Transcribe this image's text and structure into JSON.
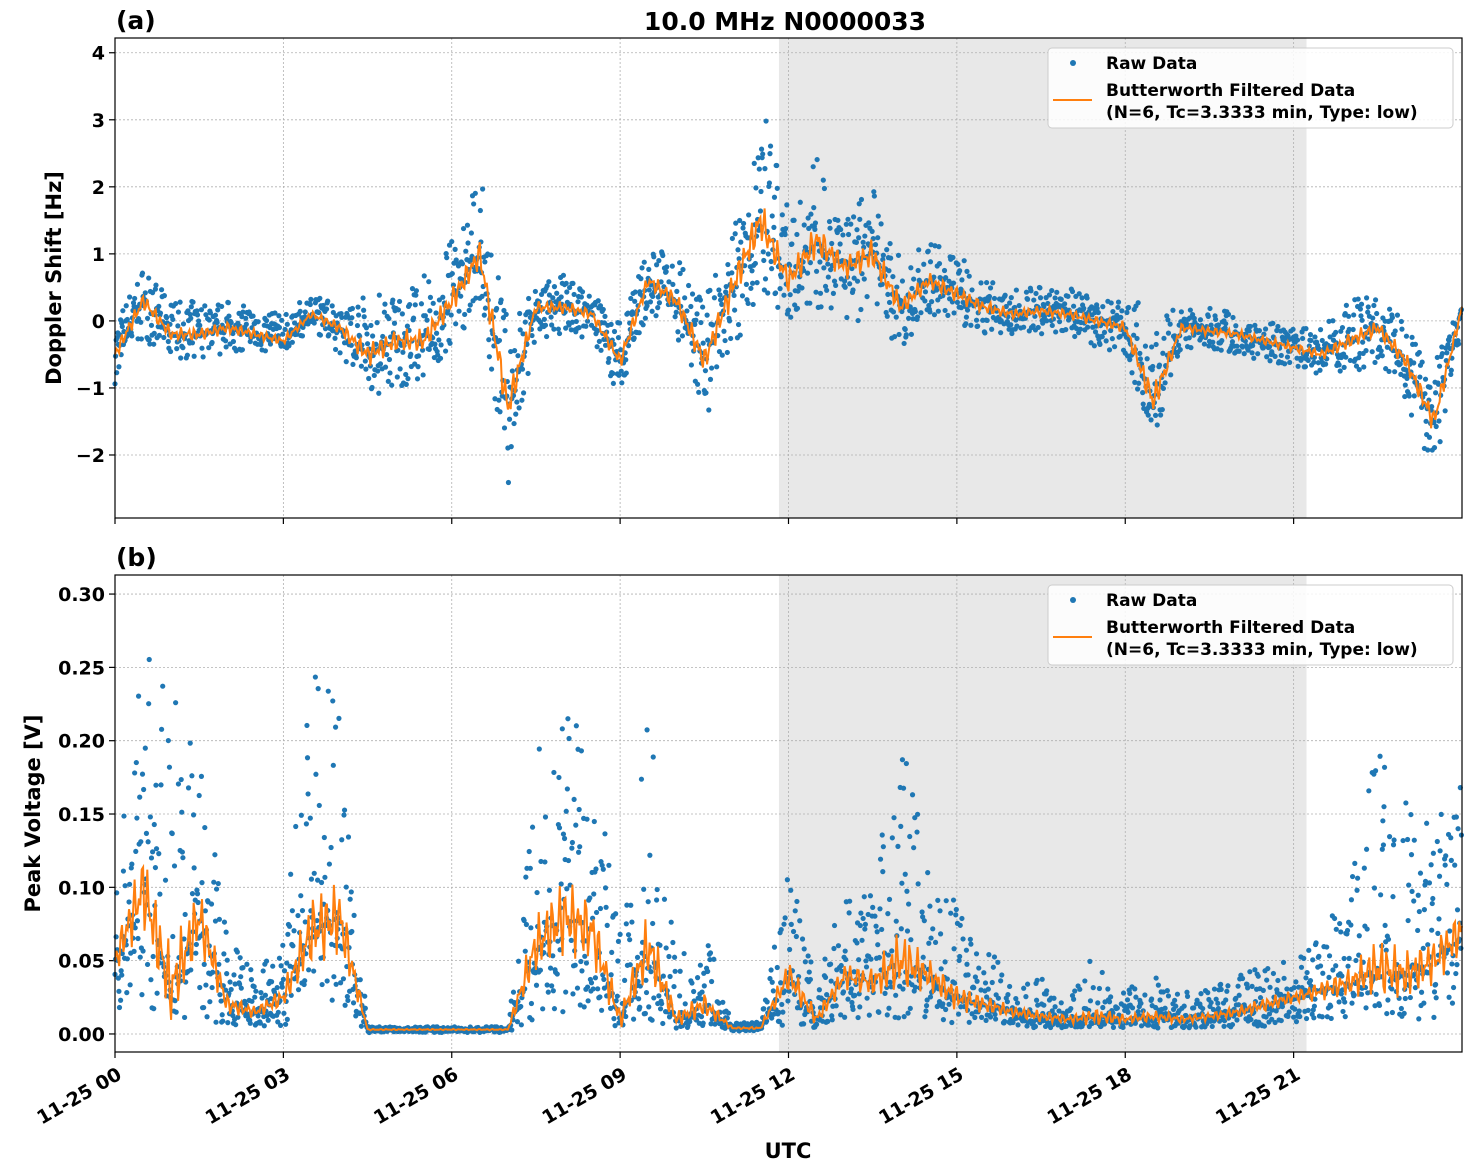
{
  "title": "10.0 MHz N0000033",
  "xlabel": "UTC",
  "colors": {
    "raw": "#1f77b4",
    "filtered": "#ff7f0e",
    "shade": "#e8e8e8"
  },
  "chart_data": [
    {
      "type": "scatter",
      "panel_label": "(a)",
      "ylabel": "Doppler Shift [Hz]",
      "xlim_hours": [
        0,
        24
      ],
      "ylim": [
        -2.94,
        4.22
      ],
      "yticks": [
        -2,
        -1,
        0,
        1,
        2,
        3,
        4
      ],
      "ytick_labels": [
        "−2",
        "−1",
        "0",
        "1",
        "2",
        "3",
        "4"
      ],
      "xtick_labels": [
        "11-25 00",
        "11-25 03",
        "11-25 06",
        "11-25 09",
        "11-25 12",
        "11-25 15",
        "11-25 18",
        "11-25 21"
      ],
      "xticks_hours": [
        0,
        3,
        6,
        9,
        12,
        15,
        18,
        21
      ],
      "grid": true,
      "legend_placement": "upper right",
      "legend": [
        "Raw Data",
        "Butterworth Filtered Data",
        "(N=6, Tc=3.3333 min, Type: low)"
      ],
      "shaded_interval_hours": [
        11.83,
        21.23
      ],
      "x_hours": [
        0,
        0.5,
        1,
        1.5,
        2,
        2.5,
        3,
        3.5,
        4,
        4.5,
        5,
        5.5,
        6,
        6.5,
        7,
        7.5,
        8,
        8.5,
        9,
        9.5,
        10,
        10.5,
        11,
        11.5,
        12,
        12.5,
        13,
        13.5,
        14,
        14.5,
        15,
        15.5,
        16,
        16.5,
        17,
        17.5,
        18,
        18.5,
        19,
        19.5,
        20,
        20.5,
        21,
        21.5,
        22,
        22.5,
        23,
        23.5,
        24
      ],
      "series": [
        {
          "name": "Butterworth Filtered Data",
          "values": [
            -0.5,
            0.3,
            -0.2,
            -0.2,
            -0.1,
            -0.2,
            -0.3,
            0.1,
            -0.1,
            -0.5,
            -0.3,
            -0.3,
            0.3,
            1.0,
            -1.3,
            0.2,
            0.2,
            0.1,
            -0.6,
            0.6,
            0.3,
            -0.6,
            0.5,
            1.5,
            0.6,
            1.2,
            0.8,
            1.0,
            0.2,
            0.6,
            0.4,
            0.2,
            0.1,
            0.15,
            0.1,
            0.0,
            -0.1,
            -1.2,
            -0.1,
            -0.15,
            -0.2,
            -0.3,
            -0.4,
            -0.5,
            -0.3,
            -0.1,
            -0.6,
            -1.5,
            0.2
          ]
        },
        {
          "name": "Raw Data",
          "min": [
            -1.0,
            -0.3,
            -0.6,
            -0.6,
            -0.5,
            -0.5,
            -0.5,
            -0.1,
            -0.5,
            -1.2,
            -1.0,
            -0.9,
            -0.5,
            0.3,
            -2.5,
            -0.3,
            -0.2,
            -0.3,
            -1.2,
            0.1,
            -0.3,
            -1.5,
            -0.5,
            0.5,
            0.0,
            0.2,
            0.0,
            -0.2,
            -0.4,
            0.1,
            -0.1,
            -0.2,
            -0.2,
            -0.2,
            -0.2,
            -0.4,
            -0.5,
            -1.8,
            -0.4,
            -0.4,
            -0.5,
            -0.6,
            -0.7,
            -0.8,
            -0.8,
            -0.6,
            -1.2,
            -2.3,
            -0.2
          ],
          "max": [
            0.0,
            0.8,
            0.3,
            0.3,
            0.3,
            0.2,
            0.1,
            0.4,
            0.3,
            0.4,
            0.5,
            0.7,
            1.2,
            2.2,
            0.0,
            0.5,
            0.7,
            0.4,
            0.0,
            1.1,
            1.0,
            0.3,
            1.6,
            3.3,
            1.8,
            2.5,
            1.6,
            2.0,
            0.9,
            1.2,
            1.0,
            0.7,
            0.5,
            0.5,
            0.5,
            0.3,
            0.3,
            0.3,
            0.2,
            0.2,
            0.1,
            0.0,
            -0.1,
            -0.1,
            0.3,
            0.4,
            0.0,
            -0.6,
            0.3
          ]
        }
      ]
    },
    {
      "type": "scatter",
      "panel_label": "(b)",
      "ylabel": "Peak Voltage [V]",
      "xlim_hours": [
        0,
        24
      ],
      "ylim": [
        -0.0123,
        0.313
      ],
      "yticks": [
        0,
        0.05,
        0.1,
        0.15,
        0.2,
        0.25,
        0.3
      ],
      "ytick_labels": [
        "0.00",
        "0.05",
        "0.10",
        "0.15",
        "0.20",
        "0.25",
        "0.30"
      ],
      "xtick_labels": [
        "11-25 00",
        "11-25 03",
        "11-25 06",
        "11-25 09",
        "11-25 12",
        "11-25 15",
        "11-25 18",
        "11-25 21"
      ],
      "xticks_hours": [
        0,
        3,
        6,
        9,
        12,
        15,
        18,
        21
      ],
      "grid": true,
      "legend_placement": "upper right",
      "legend": [
        "Raw Data",
        "Butterworth Filtered Data",
        "(N=6, Tc=3.3333 min, Type: low)"
      ],
      "shaded_interval_hours": [
        11.83,
        21.23
      ],
      "x_hours": [
        0,
        0.5,
        1,
        1.5,
        2,
        2.5,
        3,
        3.5,
        4,
        4.5,
        5,
        5.5,
        6,
        6.5,
        7,
        7.5,
        8,
        8.5,
        9,
        9.5,
        10,
        10.5,
        11,
        11.5,
        12,
        12.5,
        13,
        13.5,
        14,
        14.5,
        15,
        15.5,
        16,
        16.5,
        17,
        17.5,
        18,
        18.5,
        19,
        19.5,
        20,
        20.5,
        21,
        21.5,
        22,
        22.5,
        23,
        23.5,
        24
      ],
      "series": [
        {
          "name": "Butterworth Filtered Data",
          "values": [
            0.05,
            0.1,
            0.03,
            0.08,
            0.02,
            0.015,
            0.025,
            0.07,
            0.08,
            0.003,
            0.003,
            0.003,
            0.003,
            0.003,
            0.003,
            0.06,
            0.08,
            0.07,
            0.01,
            0.06,
            0.01,
            0.02,
            0.004,
            0.004,
            0.04,
            0.01,
            0.04,
            0.035,
            0.05,
            0.04,
            0.025,
            0.02,
            0.015,
            0.012,
            0.01,
            0.012,
            0.01,
            0.012,
            0.01,
            0.012,
            0.015,
            0.02,
            0.025,
            0.03,
            0.035,
            0.045,
            0.04,
            0.05,
            0.07
          ]
        },
        {
          "name": "Raw Data",
          "min": [
            0.01,
            0.02,
            0.01,
            0.01,
            0.005,
            0.005,
            0.005,
            0.02,
            0.02,
            0.001,
            0.001,
            0.001,
            0.001,
            0.001,
            0.001,
            0.01,
            0.01,
            0.01,
            0.004,
            0.01,
            0.004,
            0.005,
            0.002,
            0.002,
            0.005,
            0.004,
            0.01,
            0.01,
            0.01,
            0.01,
            0.005,
            0.005,
            0.005,
            0.004,
            0.004,
            0.004,
            0.004,
            0.004,
            0.004,
            0.004,
            0.005,
            0.005,
            0.008,
            0.01,
            0.01,
            0.01,
            0.01,
            0.01,
            0.02
          ],
          "max": [
            0.1,
            0.26,
            0.25,
            0.21,
            0.07,
            0.04,
            0.07,
            0.25,
            0.24,
            0.005,
            0.005,
            0.005,
            0.005,
            0.005,
            0.005,
            0.19,
            0.25,
            0.21,
            0.07,
            0.22,
            0.05,
            0.08,
            0.008,
            0.01,
            0.11,
            0.05,
            0.09,
            0.1,
            0.21,
            0.11,
            0.09,
            0.06,
            0.04,
            0.04,
            0.03,
            0.06,
            0.03,
            0.04,
            0.03,
            0.03,
            0.04,
            0.05,
            0.05,
            0.07,
            0.1,
            0.2,
            0.16,
            0.15,
            0.17
          ]
        }
      ]
    }
  ]
}
